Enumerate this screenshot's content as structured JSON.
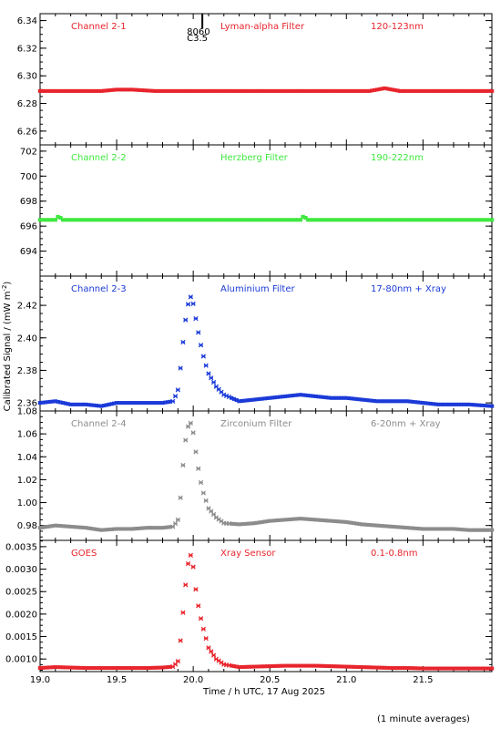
{
  "figure": {
    "ylabel": "Calibrated Signal / (mW m",
    "ylabel_sup": "-2",
    "ylabel_close": ")",
    "xlabel": "Time / h UTC, 17 Aug 2025",
    "footnote": "(1 minute averages)",
    "flare_marker": {
      "time": 20.0,
      "label_top": "8060",
      "label_bottom": "C3.5"
    }
  },
  "chart_data": [
    {
      "type": "scatter",
      "channel": "Channel 2-1",
      "filter": "Lyman-alpha Filter",
      "band": "120-123nm",
      "color": "#e8242c",
      "xlim": [
        19.0,
        21.95
      ],
      "ylim": [
        6.25,
        6.345
      ],
      "yticks": [
        6.26,
        6.28,
        6.3,
        6.32,
        6.34
      ],
      "ytick_labels": [
        "6.26",
        "6.28",
        "6.30",
        "6.32",
        "6.34"
      ],
      "series": [
        {
          "x": [
            19.0,
            19.4,
            19.5,
            19.6,
            19.75,
            20.0,
            20.5,
            21.0,
            21.15,
            21.25,
            21.35,
            21.5,
            21.95
          ],
          "y": [
            6.289,
            6.289,
            6.29,
            6.29,
            6.289,
            6.289,
            6.289,
            6.289,
            6.289,
            6.291,
            6.289,
            6.289,
            6.289
          ]
        }
      ]
    },
    {
      "type": "scatter",
      "channel": "Channel 2-2",
      "filter": "Herzberg Filter",
      "band": "190-222nm",
      "color": "#3ee83e",
      "xlim": [
        19.0,
        21.95
      ],
      "ylim": [
        692.0,
        702.5
      ],
      "yticks": [
        694,
        696,
        698,
        700,
        702
      ],
      "ytick_labels": [
        "694",
        "696",
        "698",
        "700",
        "702"
      ],
      "series": [
        {
          "x": [
            19.0,
            19.1,
            19.12,
            19.15,
            19.5,
            20.0,
            20.5,
            20.7,
            20.72,
            20.75,
            21.0,
            21.5,
            21.95
          ],
          "y": [
            696.5,
            696.5,
            696.8,
            696.5,
            696.5,
            696.5,
            696.5,
            696.5,
            696.8,
            696.5,
            696.5,
            696.5,
            696.5
          ]
        }
      ]
    },
    {
      "type": "scatter",
      "channel": "Channel 2-3",
      "filter": "Aluminium Filter",
      "band": "17-80nm + Xray",
      "color": "#1b3ad8",
      "xlim": [
        19.0,
        21.95
      ],
      "ylim": [
        2.355,
        2.438
      ],
      "yticks": [
        2.36,
        2.38,
        2.4,
        2.42
      ],
      "ytick_labels": [
        "2.36",
        "2.38",
        "2.40",
        "2.42"
      ],
      "series": [
        {
          "x": [
            19.0,
            19.1,
            19.2,
            19.3,
            19.4,
            19.5,
            19.6,
            19.7,
            19.8,
            19.87,
            19.9,
            19.92,
            19.94,
            19.96,
            19.98,
            20.0,
            20.02,
            20.04,
            20.06,
            20.08,
            20.1,
            20.15,
            20.2,
            20.3,
            20.4,
            20.5,
            20.6,
            20.7,
            20.8,
            20.9,
            21.0,
            21.1,
            21.2,
            21.3,
            21.4,
            21.5,
            21.6,
            21.7,
            21.8,
            21.95
          ],
          "y": [
            2.36,
            2.361,
            2.359,
            2.359,
            2.358,
            2.36,
            2.36,
            2.36,
            2.36,
            2.361,
            2.368,
            2.384,
            2.404,
            2.418,
            2.426,
            2.421,
            2.41,
            2.4,
            2.391,
            2.384,
            2.378,
            2.37,
            2.365,
            2.361,
            2.362,
            2.363,
            2.364,
            2.365,
            2.364,
            2.363,
            2.363,
            2.362,
            2.361,
            2.361,
            2.361,
            2.36,
            2.359,
            2.359,
            2.359,
            2.358
          ]
        }
      ]
    },
    {
      "type": "scatter",
      "channel": "Channel 2-4",
      "filter": "Zirconium Filter",
      "band": "6-20nm + Xray",
      "color": "#8c8c8c",
      "xlim": [
        19.0,
        21.95
      ],
      "ylim": [
        0.967,
        1.08
      ],
      "yticks": [
        0.98,
        1.0,
        1.02,
        1.04,
        1.06,
        1.08
      ],
      "ytick_labels": [
        "0.98",
        "1.00",
        "1.02",
        "1.04",
        "1.06",
        "1.08"
      ],
      "series": [
        {
          "x": [
            19.0,
            19.1,
            19.2,
            19.3,
            19.4,
            19.5,
            19.6,
            19.7,
            19.8,
            19.87,
            19.9,
            19.92,
            19.94,
            19.96,
            19.98,
            20.0,
            20.02,
            20.04,
            20.06,
            20.08,
            20.1,
            20.15,
            20.2,
            20.3,
            20.4,
            20.5,
            20.6,
            20.7,
            20.8,
            20.9,
            21.0,
            21.1,
            21.2,
            21.3,
            21.4,
            21.5,
            21.6,
            21.7,
            21.8,
            21.95
          ],
          "y": [
            0.978,
            0.98,
            0.979,
            0.978,
            0.976,
            0.977,
            0.977,
            0.978,
            0.978,
            0.979,
            0.985,
            1.008,
            1.045,
            1.064,
            1.071,
            1.061,
            1.041,
            1.024,
            1.011,
            1.003,
            0.995,
            0.987,
            0.982,
            0.981,
            0.982,
            0.984,
            0.985,
            0.986,
            0.985,
            0.984,
            0.983,
            0.981,
            0.98,
            0.979,
            0.978,
            0.977,
            0.977,
            0.977,
            0.976,
            0.976
          ]
        }
      ]
    },
    {
      "type": "scatter",
      "channel": "GOES",
      "filter": "Xray Sensor",
      "band": "0.1-0.8nm",
      "color": "#e8242c",
      "xlim": [
        19.0,
        21.95
      ],
      "ylim": [
        0.00072,
        0.00364
      ],
      "yticks": [
        0.001,
        0.0015,
        0.002,
        0.0025,
        0.003,
        0.0035
      ],
      "ytick_labels": [
        "0.0010",
        "0.0015",
        "0.0020",
        "0.0025",
        "0.0030",
        "0.0035"
      ],
      "xticks": [
        19.0,
        19.5,
        20.0,
        20.5,
        21.0,
        21.5
      ],
      "xtick_labels": [
        "19.0",
        "19.5",
        "20.0",
        "20.5",
        "21.0",
        "21.5"
      ],
      "series": [
        {
          "x": [
            19.0,
            19.1,
            19.2,
            19.3,
            19.4,
            19.5,
            19.6,
            19.7,
            19.8,
            19.87,
            19.9,
            19.92,
            19.94,
            19.96,
            19.98,
            20.0,
            20.02,
            20.04,
            20.06,
            20.08,
            20.1,
            20.15,
            20.2,
            20.3,
            20.4,
            20.5,
            20.6,
            20.7,
            20.8,
            20.9,
            21.0,
            21.1,
            21.2,
            21.3,
            21.4,
            21.5,
            21.6,
            21.7,
            21.8,
            21.95
          ],
          "y": [
            0.0008,
            0.00082,
            0.00081,
            0.0008,
            0.0008,
            0.0008,
            0.0008,
            0.0008,
            0.00081,
            0.00083,
            0.00095,
            0.0015,
            0.0023,
            0.003,
            0.00336,
            0.00305,
            0.00245,
            0.00205,
            0.00175,
            0.0015,
            0.00125,
            0.001,
            0.00088,
            0.00082,
            0.00083,
            0.00084,
            0.00085,
            0.00085,
            0.00085,
            0.00084,
            0.00083,
            0.00082,
            0.00081,
            0.0008,
            0.0008,
            0.00079,
            0.00079,
            0.00079,
            0.00079,
            0.00079
          ]
        }
      ]
    }
  ]
}
